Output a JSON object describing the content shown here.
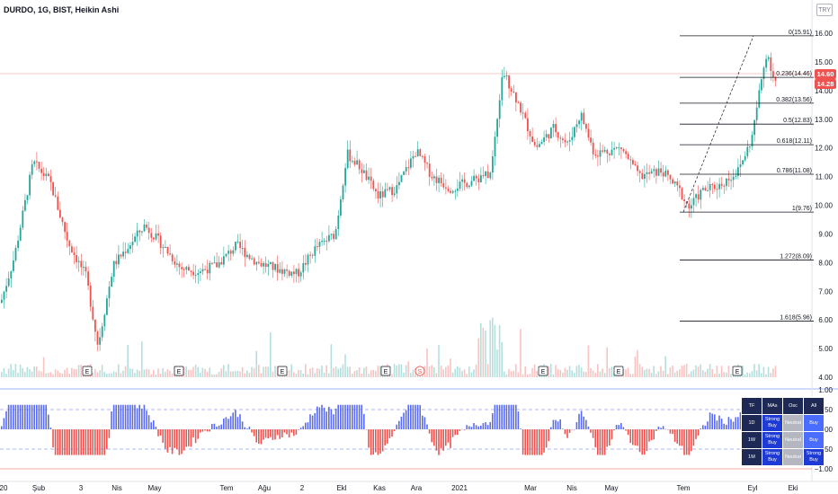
{
  "header": {
    "title": "DURDO, 1G, BIST, Heikin Ashi",
    "badge": "TRY",
    "top_price": "16.00"
  },
  "price_axis": {
    "ticks": [
      "16.00",
      "15.00",
      "14.00",
      "13.00",
      "12.00",
      "11.00",
      "10.00",
      "9.00",
      "8.00",
      "7.00",
      "6.00",
      "5.00",
      "4.00"
    ],
    "last_price": "14.60",
    "current_price": "14.28",
    "last_color": "#ef5350",
    "current_color": "#ef5350"
  },
  "fib": [
    {
      "label": "0(15.91)",
      "price": 15.91
    },
    {
      "label": "0.236(14.46)",
      "price": 14.46
    },
    {
      "label": "0.382(13.56)",
      "price": 13.56
    },
    {
      "label": "0.5(12.83)",
      "price": 12.83
    },
    {
      "label": "0.618(12.11)",
      "price": 12.11
    },
    {
      "label": "0.786(11.08)",
      "price": 11.08
    },
    {
      "label": "1(9.76)",
      "price": 9.76
    },
    {
      "label": "1.272(8.09)",
      "price": 8.09
    },
    {
      "label": "1.618(5.96)",
      "price": 5.96
    }
  ],
  "osc_axis": {
    "ticks": [
      "1.00",
      "0.50",
      "0.00",
      "−0.50",
      "−1.00"
    ]
  },
  "time_axis": [
    "20",
    "Şub",
    "3",
    "Nis",
    "May",
    "Tem",
    "Ağu",
    "2",
    "Ekl",
    "Kas",
    "Ara",
    "2021",
    "Mar",
    "Nis",
    "May",
    "Tem",
    "Eyl",
    "Eki"
  ],
  "events": [
    "E",
    "E",
    "E",
    "E",
    "S",
    "E",
    "E",
    "E"
  ],
  "tf_table": {
    "headers": [
      "TF",
      "MAs",
      "Osc",
      "All"
    ],
    "rows": [
      {
        "tf": "1D",
        "mas": "Strong Buy",
        "osc": "Neutral",
        "all": "Buy"
      },
      {
        "tf": "1W",
        "mas": "Strong Buy",
        "osc": "Neutral",
        "all": "Buy"
      },
      {
        "tf": "1M",
        "mas": "Strong Buy",
        "osc": "Neutral",
        "all": "Strong Buy"
      }
    ]
  },
  "colors": {
    "up": "#26a69a",
    "down": "#ef5350",
    "osc_pos": "#5b6bf0",
    "osc_neg": "#ef5350",
    "fib_line": "#131722"
  }
}
